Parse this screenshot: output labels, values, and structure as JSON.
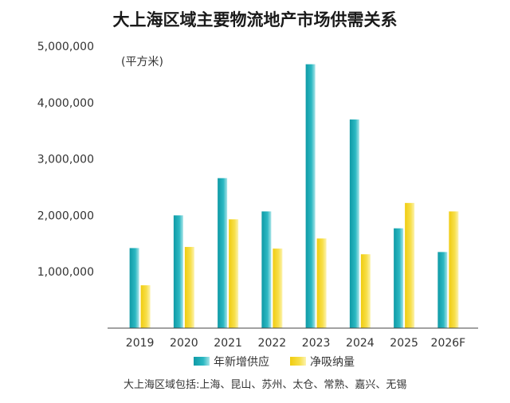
{
  "chart_data": {
    "type": "bar",
    "title": "大上海区域主要物流地产市场供需关系",
    "unit_label": "(平方米)",
    "categories": [
      "2019",
      "2020",
      "2021",
      "2022",
      "2023",
      "2024",
      "2025",
      "2026F"
    ],
    "series": [
      {
        "name": "年新增供应",
        "values": [
          1420000,
          2000000,
          2660000,
          2070000,
          4680000,
          3700000,
          1770000,
          1350000
        ],
        "color": "#17a7b3"
      },
      {
        "name": "净吸纳量",
        "values": [
          760000,
          1440000,
          1930000,
          1410000,
          1590000,
          1310000,
          2220000,
          2070000
        ],
        "color": "#f2d21b"
      }
    ],
    "y_ticks": [
      "1,000,000",
      "2,000,000",
      "3,000,000",
      "4,000,000",
      "5,000,000"
    ],
    "ylim": [
      0,
      5000000
    ],
    "legend_position": "bottom",
    "grid": false
  },
  "footnote": "大上海区域包括:上海、昆山、苏州、太仓、常熟、嘉兴、无锡"
}
